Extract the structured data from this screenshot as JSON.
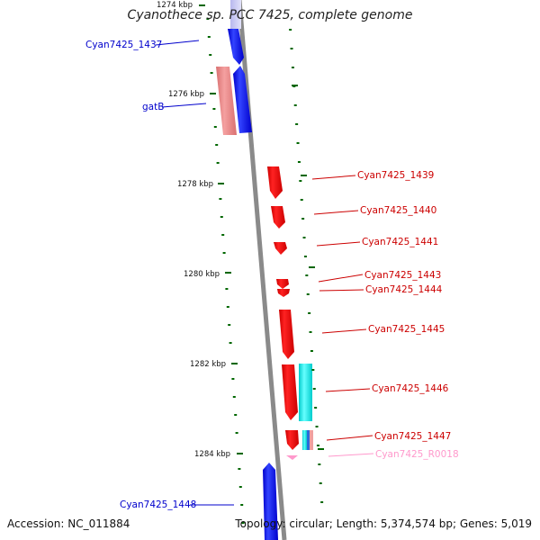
{
  "title": "Cyanothece sp. PCC 7425, complete genome",
  "accession_text": "Accession: NC_011884",
  "summary_text": "Topology: circular; Length: 5,374,574 bp; Genes: 5,019",
  "colors": {
    "forward_gene": "#ff0000",
    "reverse_gene": "#0000ff",
    "trna": "#ff99cc",
    "forward_label": "#cc0000",
    "reverse_label": "#0000cc",
    "gc_skew": "#00ffff",
    "tick": "#006600",
    "backbone": "#888888"
  },
  "kbp_ticks": [
    "1274 kbp",
    "1276 kbp",
    "1278 kbp",
    "1280 kbp",
    "1282 kbp",
    "1284 kbp"
  ],
  "genes": [
    {
      "name": "Cyan7425_1437",
      "strand": "reverse"
    },
    {
      "name": "gatB",
      "strand": "reverse"
    },
    {
      "name": "Cyan7425_1439",
      "strand": "forward"
    },
    {
      "name": "Cyan7425_1440",
      "strand": "forward"
    },
    {
      "name": "Cyan7425_1441",
      "strand": "forward"
    },
    {
      "name": "Cyan7425_1443",
      "strand": "forward"
    },
    {
      "name": "Cyan7425_1444",
      "strand": "forward"
    },
    {
      "name": "Cyan7425_1445",
      "strand": "forward"
    },
    {
      "name": "Cyan7425_1446",
      "strand": "forward"
    },
    {
      "name": "Cyan7425_1447",
      "strand": "forward"
    },
    {
      "name": "Cyan7425_R0018",
      "strand": "forward",
      "type": "tRNA"
    },
    {
      "name": "Cyan7425_1448",
      "strand": "reverse"
    }
  ]
}
